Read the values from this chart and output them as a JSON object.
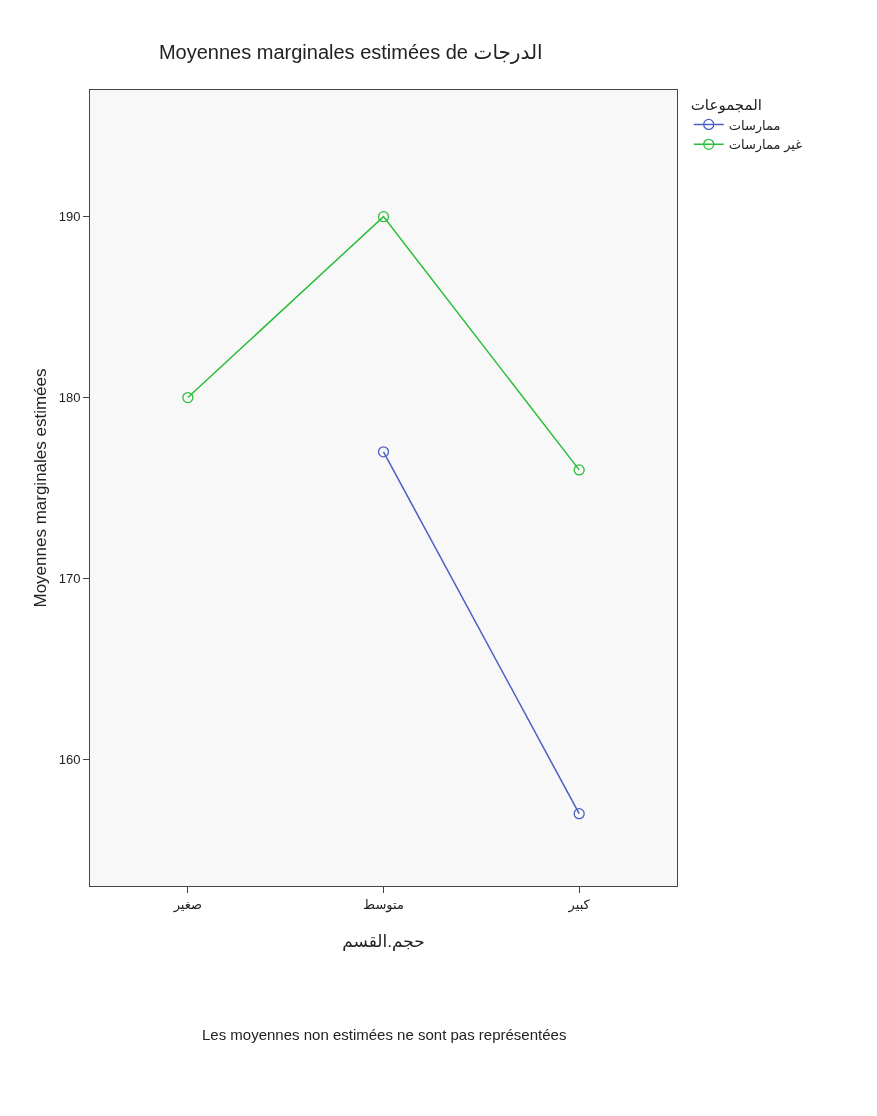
{
  "chart_data": {
    "type": "line",
    "title": "Moyennes marginales estimées de الدرجات",
    "xlabel": "حجم.القسم",
    "ylabel": "Moyennes marginales estimées",
    "legend_title": "المجموعات",
    "annotations": [
      "Les moyennes non estimées ne sont pas représentées"
    ],
    "categories": [
      "صغير",
      "متوسط",
      "كبير"
    ],
    "series": [
      {
        "name": "ممارسات",
        "color": "#4a5fc1",
        "values": [
          null,
          177,
          157
        ]
      },
      {
        "name": "غير ممارسات",
        "color": "#2bbd3a",
        "values": [
          180,
          190,
          176
        ]
      }
    ],
    "ylim": [
      153,
      197
    ],
    "yticks": [
      160,
      170,
      180,
      190
    ],
    "grid": false,
    "legend": "top right",
    "marker": "circle",
    "line_style": "solid"
  }
}
